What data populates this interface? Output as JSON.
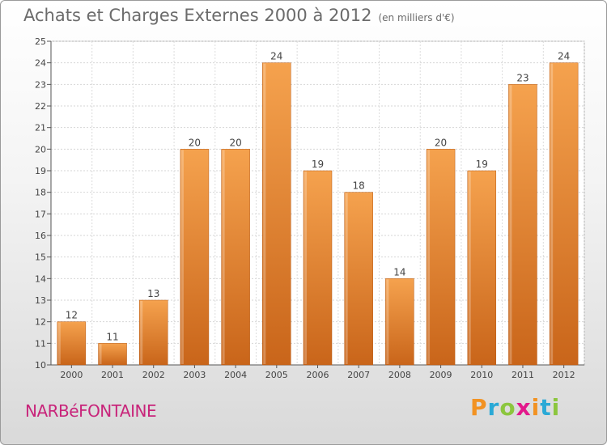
{
  "header": {
    "title": "Achats et Charges Externes 2000 à 2012",
    "subtitle": "(en milliers d'€)"
  },
  "footer": {
    "town": "NARBéFONTAINE",
    "logo": "Proxiti"
  },
  "colors": {
    "bar_light": "#f5a24e",
    "bar_dark": "#c9651a",
    "town": "#c8247a",
    "logo_letters": [
      "#f29222",
      "#2aa9d6",
      "#8cc63e",
      "#e3188b",
      "#f29222",
      "#2aa9d6",
      "#8cc63e"
    ]
  },
  "chart_data": {
    "type": "bar",
    "categories": [
      "2000",
      "2001",
      "2002",
      "2003",
      "2004",
      "2005",
      "2006",
      "2007",
      "2008",
      "2009",
      "2010",
      "2011",
      "2012"
    ],
    "values": [
      12,
      11,
      13,
      20,
      20,
      24,
      19,
      18,
      14,
      20,
      19,
      23,
      24
    ],
    "ylim": [
      10,
      25
    ],
    "yticks": [
      10,
      11,
      12,
      13,
      14,
      15,
      16,
      17,
      18,
      19,
      20,
      21,
      22,
      23,
      24,
      25
    ],
    "grid": true,
    "legend": "none"
  }
}
